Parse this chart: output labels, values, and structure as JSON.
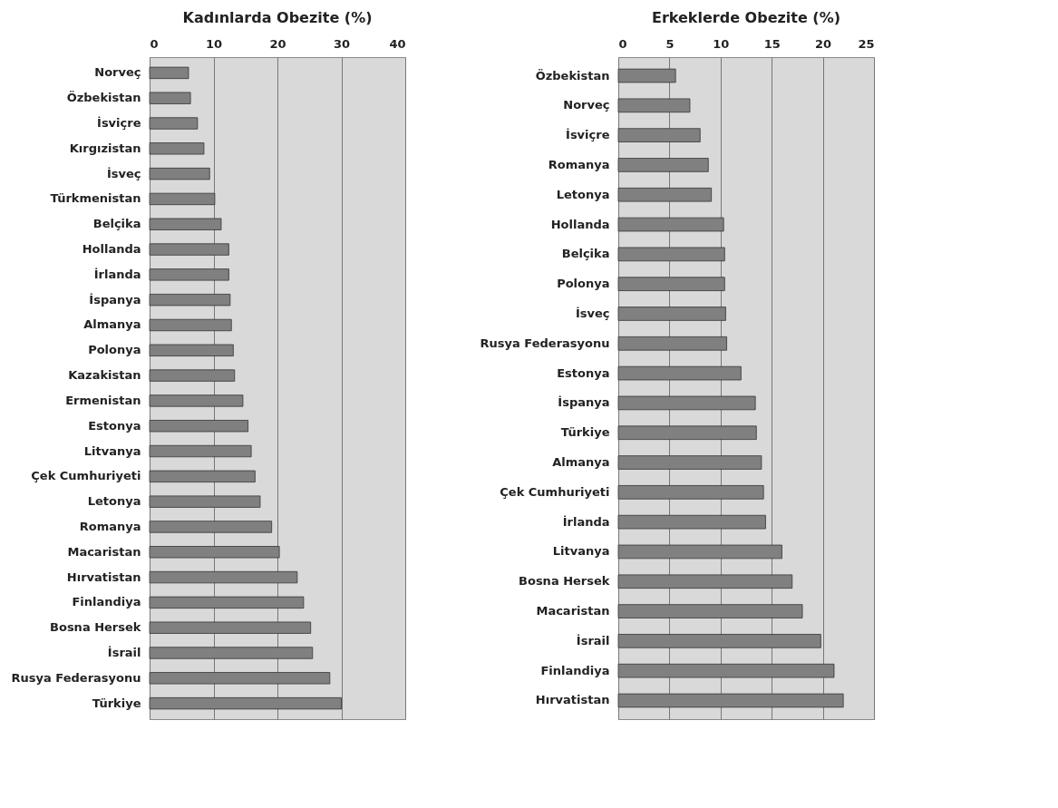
{
  "chart_data": [
    {
      "type": "bar",
      "orientation": "horizontal",
      "title": "Kadınlarda Obezite (%)",
      "categories": [
        "Norveç",
        "Özbekistan",
        "İsviçre",
        "Kırgızistan",
        "İsveç",
        "Türkmenistan",
        "Belçika",
        "Hollanda",
        "İrlanda",
        "İspanya",
        "Almanya",
        "Polonya",
        "Kazakistan",
        "Ermenistan",
        "Estonya",
        "Litvanya",
        "Çek Cumhuriyeti",
        "Letonya",
        "Romanya",
        "Macaristan",
        "Hırvatistan",
        "Finlandiya",
        "Bosna Hersek",
        "İsrail",
        "Rusya Federasyonu",
        "Türkiye"
      ],
      "values": [
        6.1,
        6.4,
        7.5,
        8.5,
        9.4,
        10.2,
        11.2,
        12.4,
        12.4,
        12.6,
        12.8,
        13.1,
        13.3,
        14.6,
        15.4,
        15.9,
        16.5,
        17.3,
        19.1,
        20.3,
        23.1,
        24.1,
        25.2,
        25.5,
        28.2,
        30.0
      ],
      "color": "#808080",
      "xlim": [
        0,
        40
      ],
      "xticks": [
        0,
        10,
        20,
        30,
        40
      ],
      "grid": "x"
    },
    {
      "type": "bar",
      "orientation": "horizontal",
      "title": "Erkeklerde Obezite (%)",
      "categories": [
        "Özbekistan",
        "Norveç",
        "İsviçre",
        "Romanya",
        "Letonya",
        "Hollanda",
        "Belçika",
        "Polonya",
        "İsveç",
        "Rusya Federasyonu",
        "Estonya",
        "İspanya",
        "Türkiye",
        "Almanya",
        "Çek Cumhuriyeti",
        "İrlanda",
        "Litvanya",
        "Bosna Hersek",
        "Macaristan",
        "İsrail",
        "Finlandiya",
        "Hırvatistan"
      ],
      "values": [
        5.6,
        7.0,
        8.0,
        8.8,
        9.1,
        10.3,
        10.4,
        10.4,
        10.5,
        10.6,
        12.0,
        13.4,
        13.5,
        14.0,
        14.2,
        14.4,
        16.0,
        17.0,
        18.0,
        19.8,
        21.1,
        22.0
      ],
      "color": "#808080",
      "xlim": [
        0,
        25
      ],
      "xticks": [
        0,
        5,
        10,
        15,
        20,
        25
      ],
      "grid": "x"
    }
  ]
}
